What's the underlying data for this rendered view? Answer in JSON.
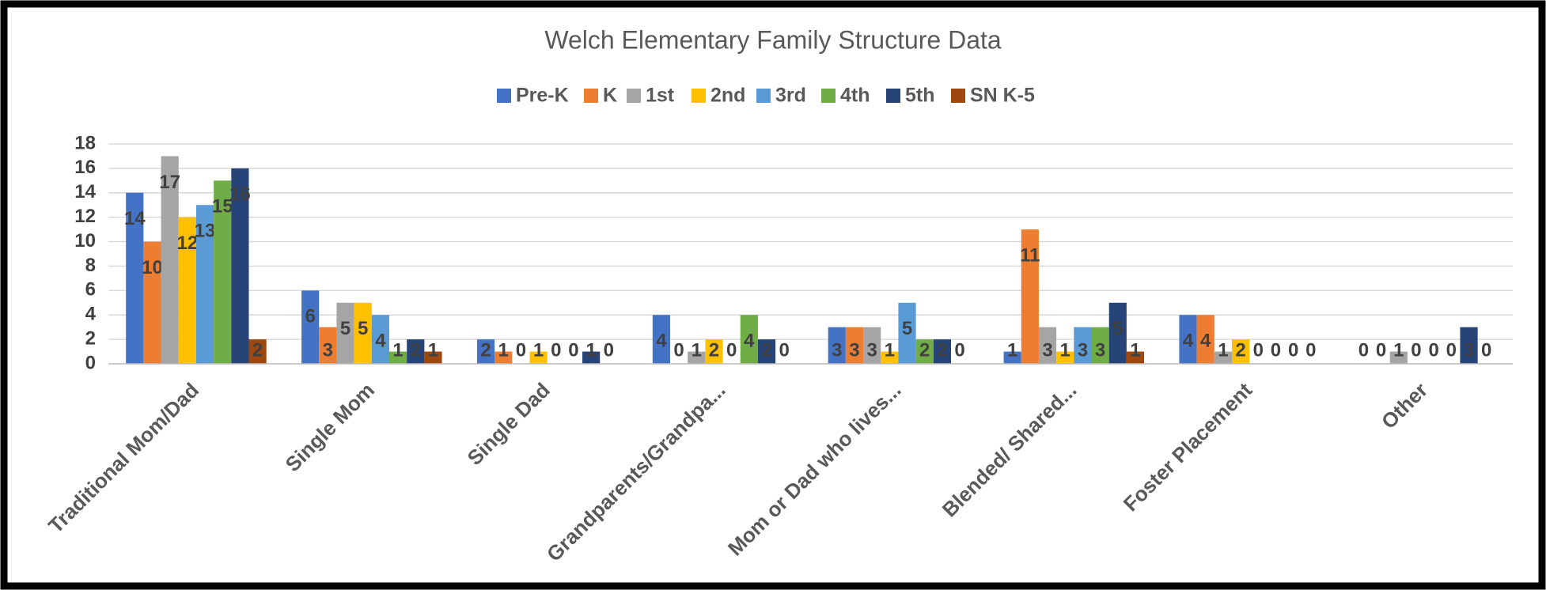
{
  "chart_data": {
    "type": "bar",
    "title": "Welch Elementary Family Structure Data",
    "categories": [
      "Traditional Mom/Dad",
      "Single Mom",
      "Single Dad",
      "Grandparents/Grandpa...",
      "Mom or Dad who lives...",
      "Blended/ Shared...",
      "Foster Placement",
      "Other"
    ],
    "series": [
      {
        "name": "Pre-K",
        "color": "#4472c4",
        "values": [
          14,
          6,
          2,
          4,
          3,
          1,
          4,
          0
        ]
      },
      {
        "name": "K",
        "color": "#ed7d31",
        "values": [
          10,
          3,
          1,
          0,
          3,
          11,
          4,
          0
        ]
      },
      {
        "name": "1st",
        "color": "#a5a5a5",
        "values": [
          17,
          5,
          0,
          1,
          3,
          3,
          1,
          1
        ]
      },
      {
        "name": "2nd",
        "color": "#ffc000",
        "values": [
          12,
          5,
          1,
          2,
          1,
          1,
          2,
          0
        ]
      },
      {
        "name": "3rd",
        "color": "#5b9bd5",
        "values": [
          13,
          4,
          0,
          0,
          5,
          3,
          0,
          0
        ]
      },
      {
        "name": "4th",
        "color": "#70ad47",
        "values": [
          15,
          1,
          0,
          4,
          2,
          3,
          0,
          0
        ]
      },
      {
        "name": "5th",
        "color": "#264478",
        "values": [
          16,
          2,
          1,
          2,
          2,
          5,
          0,
          3
        ]
      },
      {
        "name": "SN K-5",
        "color": "#9e480e",
        "values": [
          2,
          1,
          0,
          0,
          0,
          1,
          0,
          0
        ]
      }
    ],
    "ylim": [
      0,
      18
    ],
    "yticks": [
      0,
      2,
      4,
      6,
      8,
      10,
      12,
      14,
      16,
      18
    ],
    "grid": true,
    "legend": "top"
  }
}
